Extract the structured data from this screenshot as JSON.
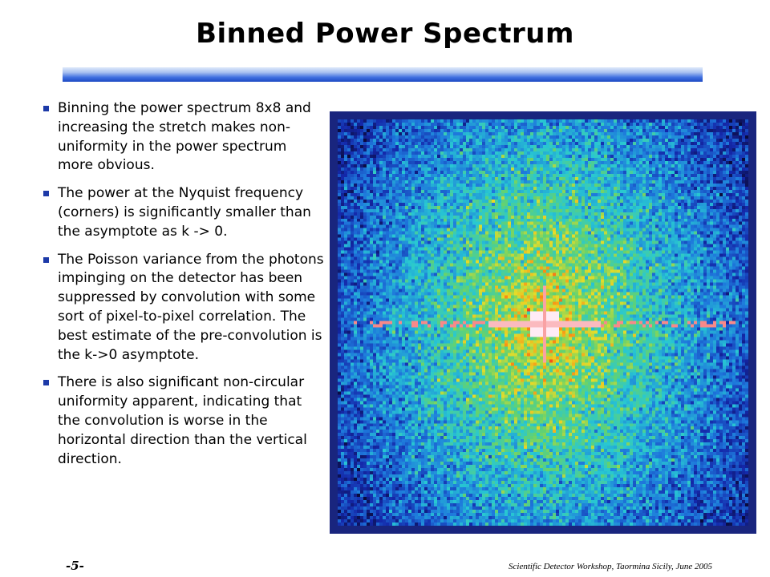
{
  "slide": {
    "title": "Binned Power Spectrum",
    "page_number": "-5-",
    "footer": "Scientific Detector Workshop, Taormina Sicily, June 2005"
  },
  "bullets": [
    "Binning the power spectrum 8x8 and increasing the stretch makes non-uniformity in the power spectrum more obvious.",
    "The power at the Nyquist frequency (corners) is significantly smaller than the asymptote as k -> 0.",
    "The Poisson variance from the photons impinging on the detector has been suppressed by convolution with some sort of pixel-to-pixel correlation.  The best estimate of the pre-convolution is the k->0 asymptote.",
    "There is also significant non-circular uniformity apparent, indicating that the convolution is worse in the horizontal direction than the vertical direction."
  ],
  "colors": {
    "title_bar": "#3f6fe0",
    "bullet": "#1d3aa8",
    "image_frame": "#19257e"
  }
}
